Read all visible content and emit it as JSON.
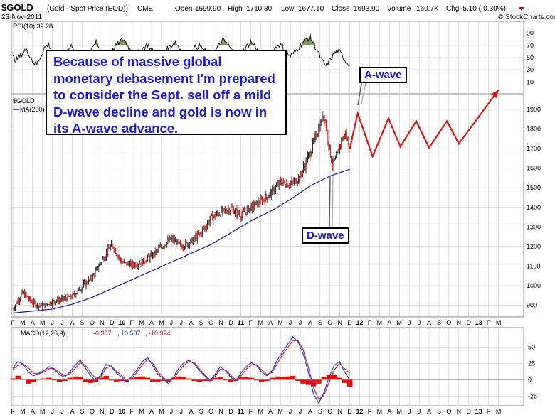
{
  "header": {
    "symbol": "$GOLD",
    "description": "(Gold - Spot Price (EOD))",
    "exchange": "CME",
    "date": "23-Nov-2011",
    "open_label": "Open",
    "open": "1699.90",
    "high_label": "High",
    "high": "1710.80",
    "low_label": "Low",
    "low": "1677.10",
    "close_label": "Close",
    "close": "1693.90",
    "volume_label": "Volume",
    "volume": "160.7K",
    "chg_label": "Chg",
    "chg": "-5.10 (-0.30%)",
    "watermark": "© StockCharts.com"
  },
  "annotations": {
    "callout": "Because of massive global monetary debasement I'm prepared to consider the Sept. sell off a mild D-wave decline and gold is now in its A-wave advance.",
    "a_wave": "A-wave",
    "d_wave": "D-wave"
  },
  "colors": {
    "price": "#111111",
    "price_down": "#cc0000",
    "ma": "#1a1a8c",
    "projection": "#e31212",
    "macd": "#1f3fd8",
    "signal": "#e01515",
    "histogram": "#ff0000",
    "rsi": "#111111",
    "rsi_fill": "#6e8a3d",
    "grid": "#c9c9c9",
    "callout_text": "#1a1ae0"
  },
  "chart_data": [
    {
      "type": "line",
      "panel": "RSI",
      "title": "RSI(10) 39.28",
      "series": [
        {
          "name": "RSI(10)",
          "last": 39.28
        }
      ],
      "levels": [
        70,
        30
      ],
      "ylim": [
        0,
        100
      ],
      "yticks": [
        90,
        70,
        50,
        30,
        10
      ],
      "values": [
        50,
        46,
        54,
        62,
        58,
        44,
        38,
        52,
        66,
        72,
        60,
        48,
        42,
        55,
        63,
        70,
        58,
        50,
        46,
        56,
        68,
        74,
        62,
        54,
        48,
        60,
        68,
        76,
        80,
        70,
        58,
        52,
        60,
        66,
        72,
        62,
        54,
        50,
        58,
        64,
        70,
        76,
        66,
        56,
        48,
        58,
        66,
        70,
        64,
        56,
        52,
        60,
        70,
        78,
        74,
        64,
        56,
        50,
        58,
        68,
        76,
        70,
        60,
        52,
        48,
        56,
        64,
        72,
        68,
        58,
        52,
        58,
        66,
        74,
        80,
        84,
        72,
        58,
        44,
        36,
        46,
        56,
        62,
        54,
        44,
        39
      ]
    },
    {
      "type": "line",
      "panel": "Price",
      "legend": [
        "$GOLD",
        "MA(200)"
      ],
      "ylim": [
        840,
        1980
      ],
      "yticks": [
        900,
        1000,
        1100,
        1200,
        1300,
        1400,
        1500,
        1600,
        1700,
        1800,
        1900
      ],
      "x_months": [
        "F",
        "M",
        "A",
        "M",
        "J",
        "J",
        "A",
        "S",
        "O",
        "N",
        "D",
        "10",
        "F",
        "M",
        "A",
        "M",
        "J",
        "J",
        "A",
        "S",
        "O",
        "N",
        "D",
        "11",
        "F",
        "M",
        "A",
        "M",
        "J",
        "J",
        "A",
        "S",
        "O",
        "N",
        "D",
        "12",
        "F",
        "M",
        "A",
        "M",
        "J",
        "J",
        "A",
        "S",
        "O",
        "N",
        "D",
        "13",
        "F",
        "M"
      ],
      "series": [
        {
          "name": "$GOLD",
          "points": [
            [
              0,
              880
            ],
            [
              1,
              965
            ],
            [
              2,
              910
            ],
            [
              3,
              895
            ],
            [
              4,
              920
            ],
            [
              5,
              930
            ],
            [
              6,
              945
            ],
            [
              7,
              995
            ],
            [
              8,
              1040
            ],
            [
              9,
              1130
            ],
            [
              10,
              1210
            ],
            [
              11,
              1120
            ],
            [
              12,
              1105
            ],
            [
              13,
              1120
            ],
            [
              14,
              1150
            ],
            [
              15,
              1200
            ],
            [
              16,
              1240
            ],
            [
              17,
              1200
            ],
            [
              18,
              1225
            ],
            [
              19,
              1270
            ],
            [
              20,
              1345
            ],
            [
              21,
              1375
            ],
            [
              22,
              1395
            ],
            [
              23,
              1360
            ],
            [
              24,
              1400
            ],
            [
              25,
              1430
            ],
            [
              26,
              1470
            ],
            [
              27,
              1530
            ],
            [
              28,
              1515
            ],
            [
              29,
              1560
            ],
            [
              30,
              1680
            ],
            [
              31,
              1820
            ],
            [
              31.4,
              1880
            ],
            [
              31.8,
              1750
            ],
            [
              32.2,
              1620
            ],
            [
              32.6,
              1640
            ],
            [
              33,
              1720
            ],
            [
              33.5,
              1780
            ],
            [
              34,
              1700
            ]
          ]
        },
        {
          "name": "MA(200)",
          "points": [
            [
              0,
              860
            ],
            [
              2,
              870
            ],
            [
              4,
              880
            ],
            [
              6,
              905
            ],
            [
              8,
              940
            ],
            [
              10,
              985
            ],
            [
              12,
              1030
            ],
            [
              14,
              1075
            ],
            [
              16,
              1120
            ],
            [
              18,
              1165
            ],
            [
              20,
              1210
            ],
            [
              22,
              1270
            ],
            [
              24,
              1330
            ],
            [
              26,
              1380
            ],
            [
              28,
              1440
            ],
            [
              30,
              1510
            ],
            [
              32,
              1560
            ],
            [
              34,
              1595
            ]
          ]
        },
        {
          "name": "projection",
          "points": [
            [
              34,
              1700
            ],
            [
              34.8,
              1880
            ],
            [
              36.3,
              1660
            ],
            [
              37.9,
              1855
            ],
            [
              39.1,
              1710
            ],
            [
              40.7,
              1840
            ],
            [
              42,
              1705
            ],
            [
              43.8,
              1840
            ],
            [
              45,
              1725
            ],
            [
              49,
              2000
            ]
          ]
        }
      ]
    },
    {
      "type": "line",
      "panel": "MACD",
      "title": "MACD(12,26,9)",
      "series": [
        {
          "name": "MACD",
          "last": -0.387,
          "values": [
            18,
            28,
            24,
            12,
            6,
            10,
            14,
            20,
            16,
            8,
            4,
            12,
            22,
            30,
            18,
            6,
            -2,
            8,
            24,
            20,
            10,
            4,
            -4,
            6,
            16,
            28,
            34,
            22,
            8,
            2,
            -6,
            4,
            18,
            26,
            30,
            24,
            14,
            6,
            -2,
            8,
            20,
            14,
            4,
            -2,
            10,
            20,
            26,
            22,
            12,
            6,
            14,
            30,
            42,
            54,
            66,
            58,
            40,
            12,
            -22,
            -36,
            -20,
            4,
            22,
            28,
            12,
            -0.4
          ]
        },
        {
          "name": "Signal",
          "last": 10.537,
          "values": [
            16,
            22,
            24,
            18,
            10,
            9,
            12,
            17,
            17,
            11,
            6,
            9,
            17,
            26,
            22,
            11,
            2,
            5,
            18,
            21,
            13,
            6,
            -1,
            3,
            12,
            23,
            31,
            25,
            12,
            4,
            -3,
            1,
            13,
            22,
            28,
            26,
            17,
            8,
            0,
            5,
            16,
            15,
            7,
            0,
            6,
            16,
            23,
            23,
            15,
            8,
            11,
            25,
            38,
            49,
            60,
            60,
            46,
            20,
            -12,
            -30,
            -24,
            -4,
            15,
            25,
            17,
            10.537
          ]
        },
        {
          "name": "Histogram",
          "last": -10.924
        }
      ],
      "ylim": [
        -40,
        80
      ],
      "yticks": [
        50,
        25,
        0,
        -25
      ]
    }
  ]
}
